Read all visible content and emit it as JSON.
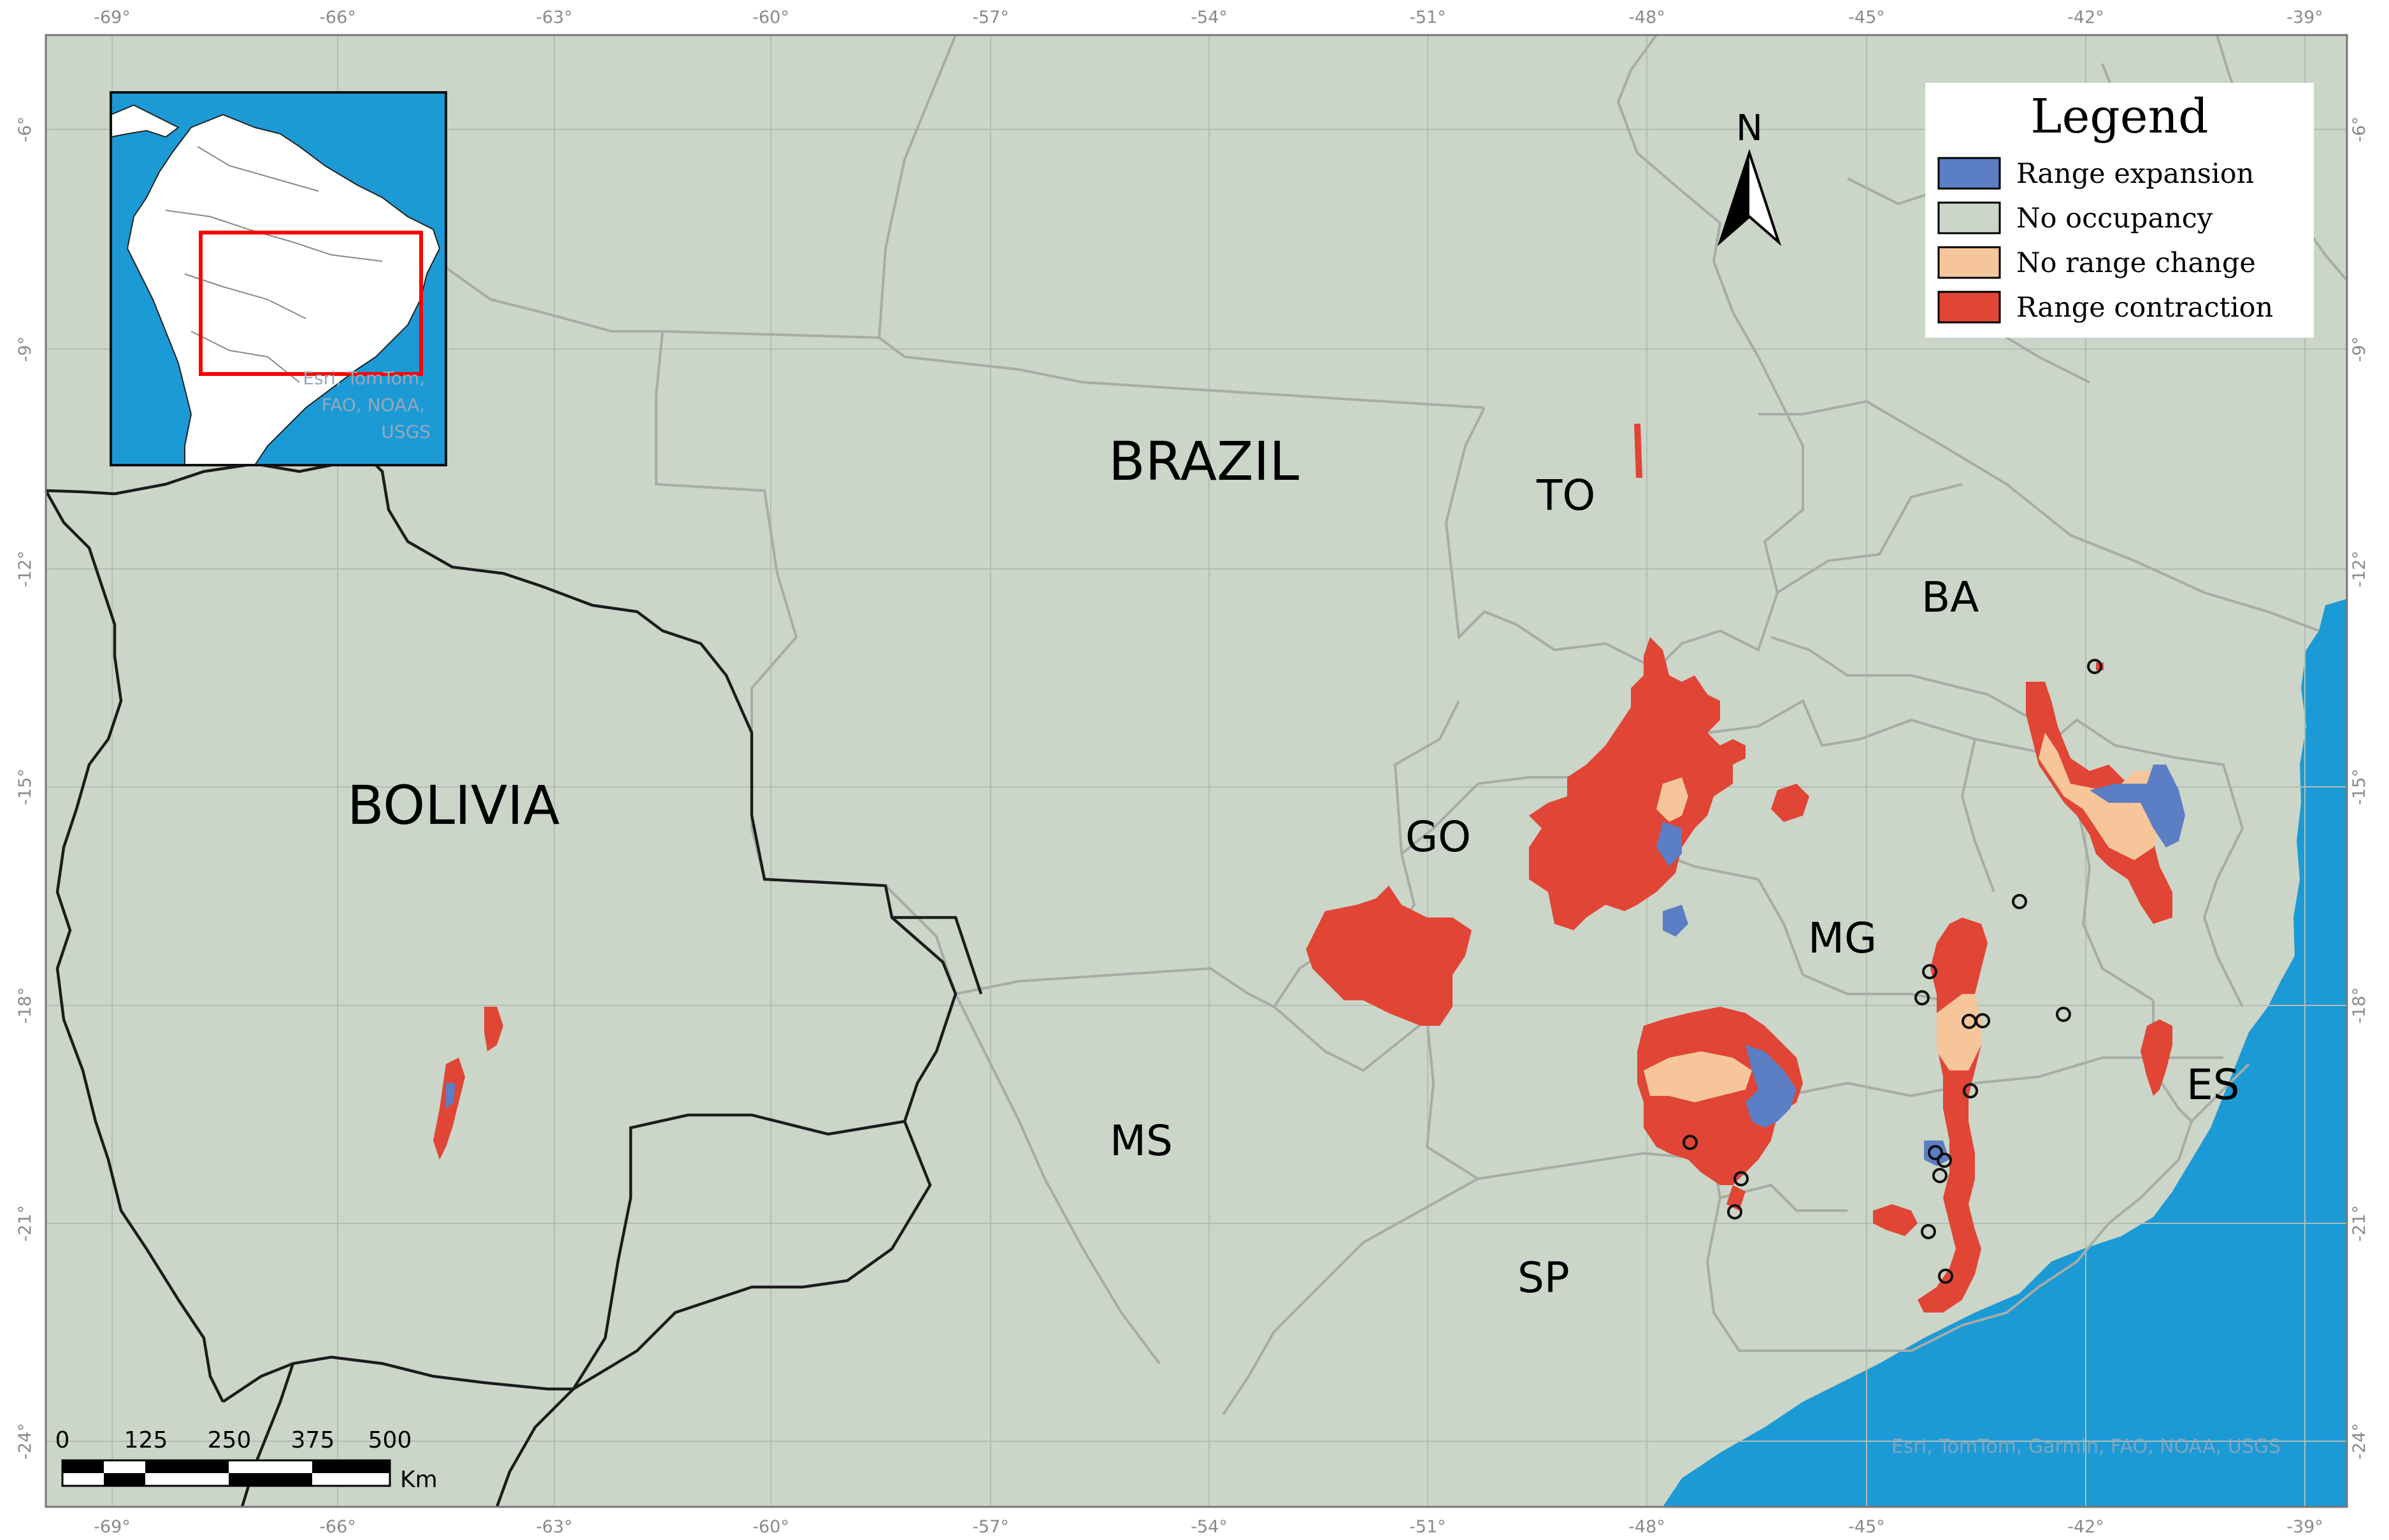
{
  "countries": {
    "brazil": "BRAZIL",
    "bolivia": "BOLIVIA"
  },
  "states": {
    "to": "TO",
    "ba": "BA",
    "go": "GO",
    "mg": "MG",
    "ms": "MS",
    "es": "ES",
    "sp": "SP"
  },
  "longitude_ticks": [
    "-69°",
    "-66°",
    "-63°",
    "-60°",
    "-57°",
    "-54°",
    "-51°",
    "-48°",
    "-45°",
    "-42°",
    "-39°"
  ],
  "latitude_ticks": [
    "-6°",
    "-9°",
    "-12°",
    "-15°",
    "-18°",
    "-21°",
    "-24°"
  ],
  "legend": {
    "title": "Legend",
    "items": [
      {
        "label": "Range expansion",
        "color": "#5b7ec4"
      },
      {
        "label": "No occupancy",
        "color": "#cbd5c8"
      },
      {
        "label": "No range change",
        "color": "#f6c69a"
      },
      {
        "label": "Range contraction",
        "color": "#e04535"
      }
    ]
  },
  "north_arrow": {
    "label": "N"
  },
  "scale_bar": {
    "labels": [
      "0",
      "125",
      "250",
      "375",
      "500"
    ],
    "unit": "Km"
  },
  "inset": {
    "attribution_lines": [
      "Esri, TomTom,",
      "FAO, NOAA,",
      "USGS"
    ]
  },
  "attribution": "Esri, TomTom, Garmin, FAO, NOAA, USGS",
  "colors": {
    "land": "#cbd5c8",
    "ocean": "#1b9ad6",
    "expansion": "#5b7ec4",
    "stable": "#f6c69a",
    "contraction": "#e04535",
    "frame_highlight": "#ff0000"
  }
}
